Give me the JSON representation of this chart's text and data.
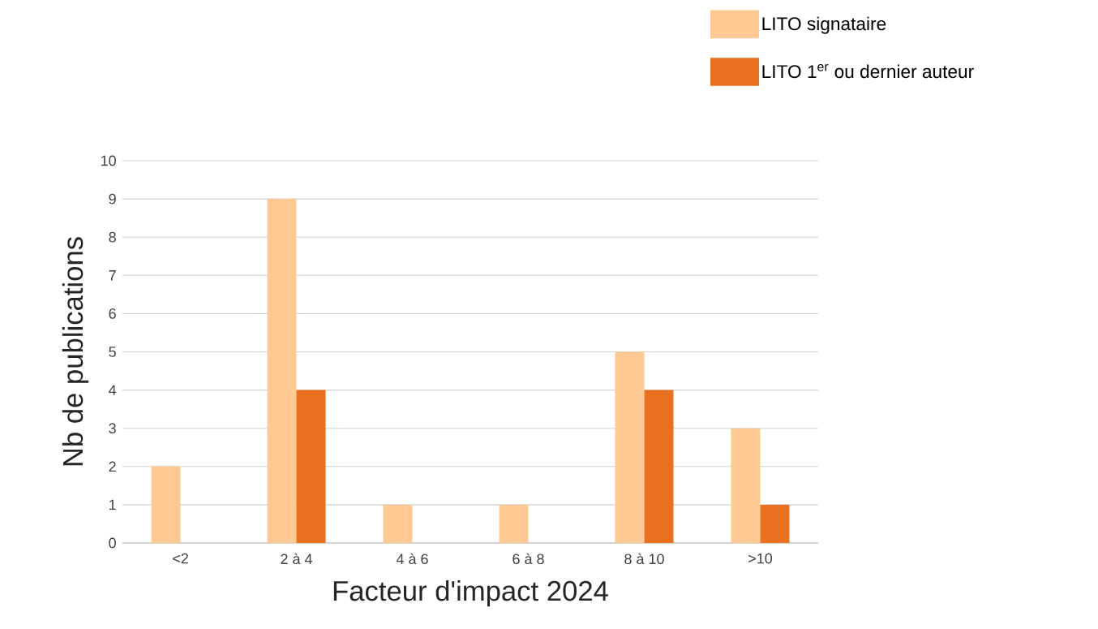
{
  "chart_data": {
    "type": "bar",
    "xlabel": "Facteur d'impact 2024",
    "ylabel": "Nb de publications",
    "categories": [
      "<2",
      "2 à 4",
      "4 à 6",
      "6 à 8",
      "8 à 10",
      ">10"
    ],
    "series": [
      {
        "name": "LITO signataire",
        "color": "#ffc994",
        "values": [
          2,
          9,
          1,
          1,
          5,
          3
        ]
      },
      {
        "name": "LITO 1$^{er}$ ou dernier auteur",
        "color": "#e8701e",
        "values": [
          0,
          4,
          0,
          0,
          4,
          1
        ]
      }
    ],
    "ylim": [
      0,
      10
    ],
    "yticks": [
      0,
      1,
      2,
      3,
      4,
      5,
      6,
      7,
      8,
      9,
      10
    ],
    "grid": "y",
    "legend": "top right"
  }
}
